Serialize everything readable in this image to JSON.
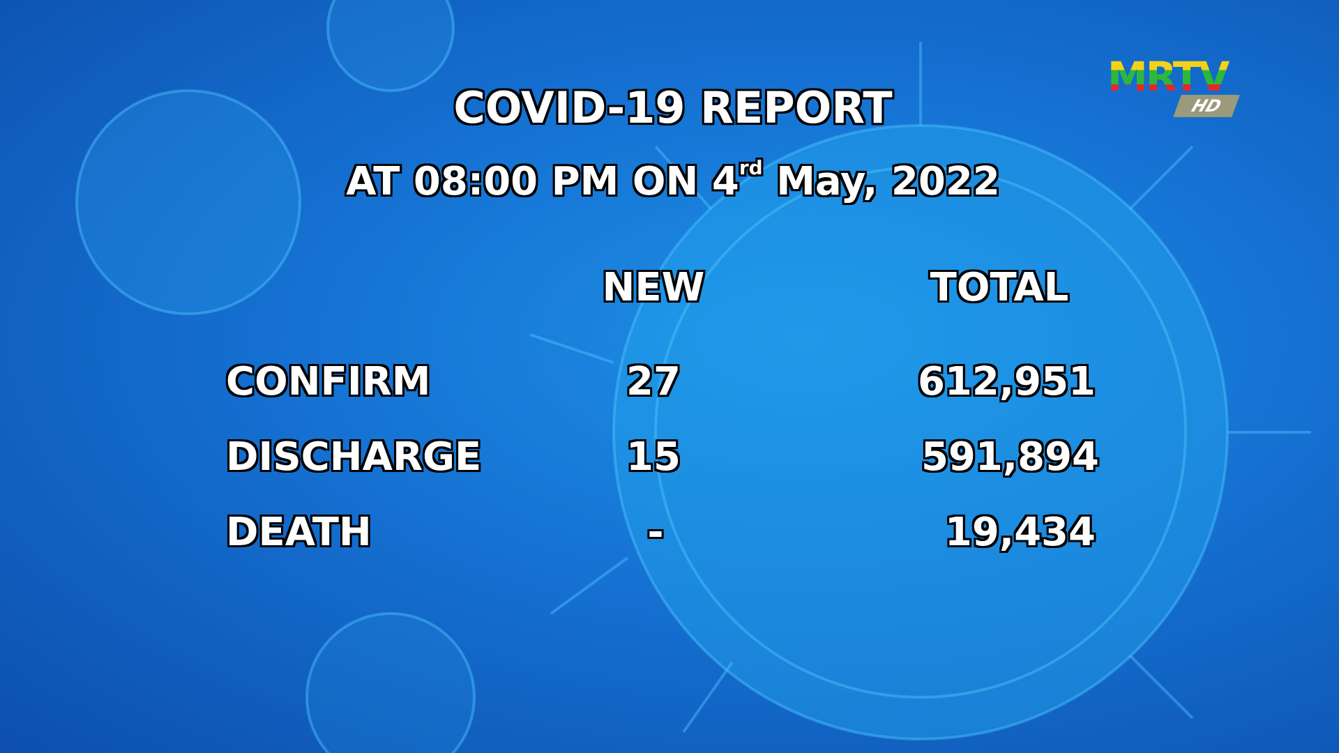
{
  "title": "COVID-19 REPORT",
  "subtitle": {
    "prefix": "AT 08:00 PM ON  4",
    "suffix": "rd",
    "rest": " May, 2022"
  },
  "columns": {
    "new": "NEW",
    "total": "TOTAL"
  },
  "rows": [
    {
      "label": "CONFIRM",
      "new": "27",
      "total": "612,951"
    },
    {
      "label": "DISCHARGE",
      "new": "15",
      "total": "591,894"
    },
    {
      "label": "DEATH",
      "new": "-",
      "total": "19,434"
    }
  ],
  "logo": {
    "text": "MRTV",
    "badge": "HD",
    "colors": [
      "#f4d21a",
      "#2db83a",
      "#e8262a"
    ]
  }
}
